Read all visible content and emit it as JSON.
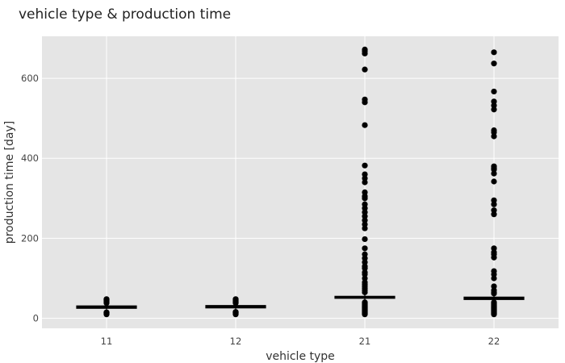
{
  "chart_data": {
    "type": "box",
    "title": "vehicle type & production time",
    "xlabel": "vehicle type",
    "ylabel": "production time [day]",
    "categories": [
      "11",
      "12",
      "21",
      "22"
    ],
    "ylim": [
      -25,
      705
    ],
    "yticks": [
      0,
      200,
      400,
      600
    ],
    "grid": true,
    "legend": "none",
    "colors": {
      "panel": "#e5e5e5",
      "grid": "#ffffff",
      "box": "#000000",
      "point": "#000000"
    },
    "boxes": [
      {
        "category": "11",
        "min": 18,
        "q1": 25,
        "median": 28,
        "q3": 31,
        "max": 36,
        "outliers": [
          10,
          12,
          14,
          15,
          38,
          40,
          42,
          44,
          46,
          47,
          48
        ]
      },
      {
        "category": "12",
        "min": 20,
        "q1": 26,
        "median": 29,
        "q3": 32,
        "max": 36,
        "outliers": [
          10,
          12,
          14,
          15,
          16,
          38,
          40,
          41,
          43,
          45,
          47,
          48
        ]
      },
      {
        "category": "21",
        "min": 44,
        "q1": 50,
        "median": 53,
        "q3": 55,
        "max": 61,
        "outliers": [
          10,
          12,
          14,
          16,
          18,
          20,
          22,
          24,
          26,
          28,
          30,
          32,
          34,
          36,
          38,
          40,
          65,
          70,
          75,
          80,
          85,
          90,
          100,
          110,
          115,
          125,
          130,
          140,
          150,
          160,
          175,
          198,
          225,
          235,
          245,
          255,
          265,
          275,
          285,
          300,
          305,
          315,
          340,
          350,
          360,
          382,
          483,
          540,
          547,
          622,
          662,
          668,
          672
        ]
      },
      {
        "category": "22",
        "min": 42,
        "q1": 47,
        "median": 50,
        "q3": 53,
        "max": 58,
        "outliers": [
          10,
          12,
          14,
          16,
          18,
          20,
          22,
          24,
          26,
          28,
          30,
          32,
          34,
          36,
          38,
          40,
          62,
          65,
          70,
          80,
          100,
          110,
          118,
          152,
          160,
          165,
          175,
          260,
          270,
          285,
          295,
          342,
          362,
          372,
          375,
          380,
          455,
          465,
          470,
          522,
          532,
          542,
          567,
          637,
          665
        ]
      }
    ]
  }
}
